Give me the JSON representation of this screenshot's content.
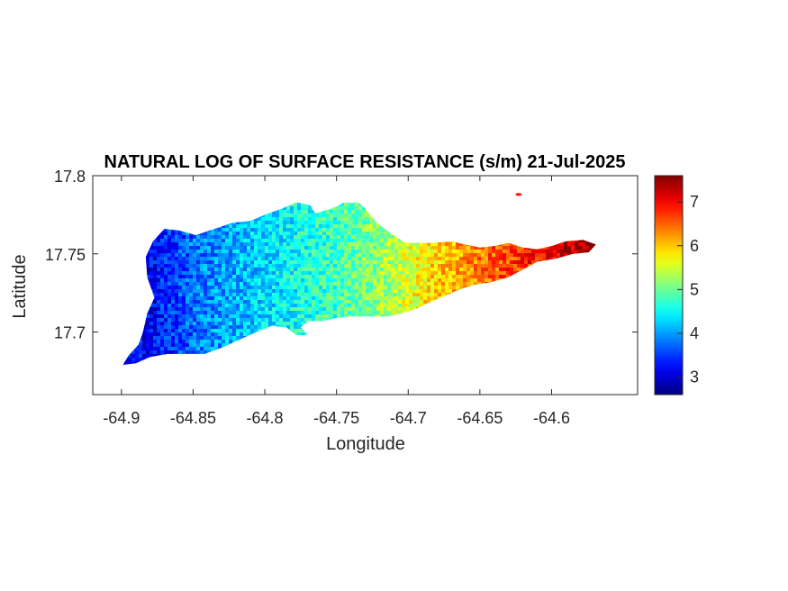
{
  "chart_data": {
    "type": "heatmap",
    "title": "NATURAL LOG OF SURFACE RESISTANCE (s/m) 21-Jul-2025",
    "xlabel": "Longitude",
    "ylabel": "Latitude",
    "xlim": [
      -64.92,
      -64.54
    ],
    "ylim": [
      17.66,
      17.8
    ],
    "xticks": [
      -64.9,
      -64.85,
      -64.8,
      -64.75,
      -64.7,
      -64.65,
      -64.6
    ],
    "xtick_labels": [
      "-64.9",
      "-64.85",
      "-64.8",
      "-64.75",
      "-64.7",
      "-64.65",
      "-64.6"
    ],
    "yticks": [
      17.7,
      17.75,
      17.8
    ],
    "ytick_labels": [
      "17.7",
      "17.75",
      "17.8"
    ],
    "colorbar": {
      "colormap": "jet",
      "limits": [
        2.6,
        7.6
      ],
      "ticks": [
        3,
        4,
        5,
        6,
        7
      ],
      "tick_labels": [
        "3",
        "4",
        "5",
        "6",
        "7"
      ]
    },
    "field_trend": [
      {
        "lon": -64.88,
        "value": 3.2
      },
      {
        "lon": -64.85,
        "value": 3.8
      },
      {
        "lon": -64.8,
        "value": 4.3
      },
      {
        "lon": -64.75,
        "value": 4.8
      },
      {
        "lon": -64.72,
        "value": 5.2
      },
      {
        "lon": -64.69,
        "value": 5.8
      },
      {
        "lon": -64.65,
        "value": 6.4
      },
      {
        "lon": -64.62,
        "value": 6.8
      },
      {
        "lon": -64.58,
        "value": 7.4
      }
    ],
    "island_outline": [
      [
        -64.899,
        17.679
      ],
      [
        -64.895,
        17.685
      ],
      [
        -64.888,
        17.692
      ],
      [
        -64.885,
        17.7
      ],
      [
        -64.882,
        17.712
      ],
      [
        -64.877,
        17.722
      ],
      [
        -64.882,
        17.735
      ],
      [
        -64.883,
        17.748
      ],
      [
        -64.878,
        17.758
      ],
      [
        -64.87,
        17.766
      ],
      [
        -64.86,
        17.765
      ],
      [
        -64.848,
        17.762
      ],
      [
        -64.835,
        17.766
      ],
      [
        -64.822,
        17.77
      ],
      [
        -64.81,
        17.771
      ],
      [
        -64.8,
        17.775
      ],
      [
        -64.788,
        17.779
      ],
      [
        -64.778,
        17.783
      ],
      [
        -64.768,
        17.781
      ],
      [
        -64.765,
        17.776
      ],
      [
        -64.757,
        17.778
      ],
      [
        -64.748,
        17.781
      ],
      [
        -64.74,
        17.787
      ],
      [
        -64.73,
        17.779
      ],
      [
        -64.722,
        17.77
      ],
      [
        -64.712,
        17.763
      ],
      [
        -64.702,
        17.757
      ],
      [
        -64.692,
        17.757
      ],
      [
        -64.682,
        17.757
      ],
      [
        -64.67,
        17.758
      ],
      [
        -64.66,
        17.756
      ],
      [
        -64.65,
        17.754
      ],
      [
        -64.64,
        17.755
      ],
      [
        -64.63,
        17.757
      ],
      [
        -64.62,
        17.754
      ],
      [
        -64.61,
        17.753
      ],
      [
        -64.6,
        17.755
      ],
      [
        -64.59,
        17.758
      ],
      [
        -64.578,
        17.759
      ],
      [
        -64.569,
        17.756
      ],
      [
        -64.574,
        17.751
      ],
      [
        -64.585,
        17.75
      ],
      [
        -64.597,
        17.747
      ],
      [
        -64.61,
        17.745
      ],
      [
        -64.62,
        17.74
      ],
      [
        -64.63,
        17.735
      ],
      [
        -64.642,
        17.732
      ],
      [
        -64.655,
        17.73
      ],
      [
        -64.665,
        17.727
      ],
      [
        -64.675,
        17.723
      ],
      [
        -64.685,
        17.719
      ],
      [
        -64.694,
        17.715
      ],
      [
        -64.704,
        17.712
      ],
      [
        -64.715,
        17.71
      ],
      [
        -64.728,
        17.71
      ],
      [
        -64.74,
        17.71
      ],
      [
        -64.75,
        17.709
      ],
      [
        -64.76,
        17.707
      ],
      [
        -64.77,
        17.707
      ],
      [
        -64.775,
        17.703
      ],
      [
        -64.77,
        17.698
      ],
      [
        -64.778,
        17.698
      ],
      [
        -64.785,
        17.703
      ],
      [
        -64.795,
        17.704
      ],
      [
        -64.806,
        17.7
      ],
      [
        -64.818,
        17.695
      ],
      [
        -64.83,
        17.69
      ],
      [
        -64.842,
        17.686
      ],
      [
        -64.855,
        17.686
      ],
      [
        -64.868,
        17.686
      ],
      [
        -64.88,
        17.684
      ],
      [
        -64.89,
        17.68
      ]
    ],
    "islet": {
      "lon": -64.623,
      "lat": 17.788,
      "value": 6.9
    }
  }
}
